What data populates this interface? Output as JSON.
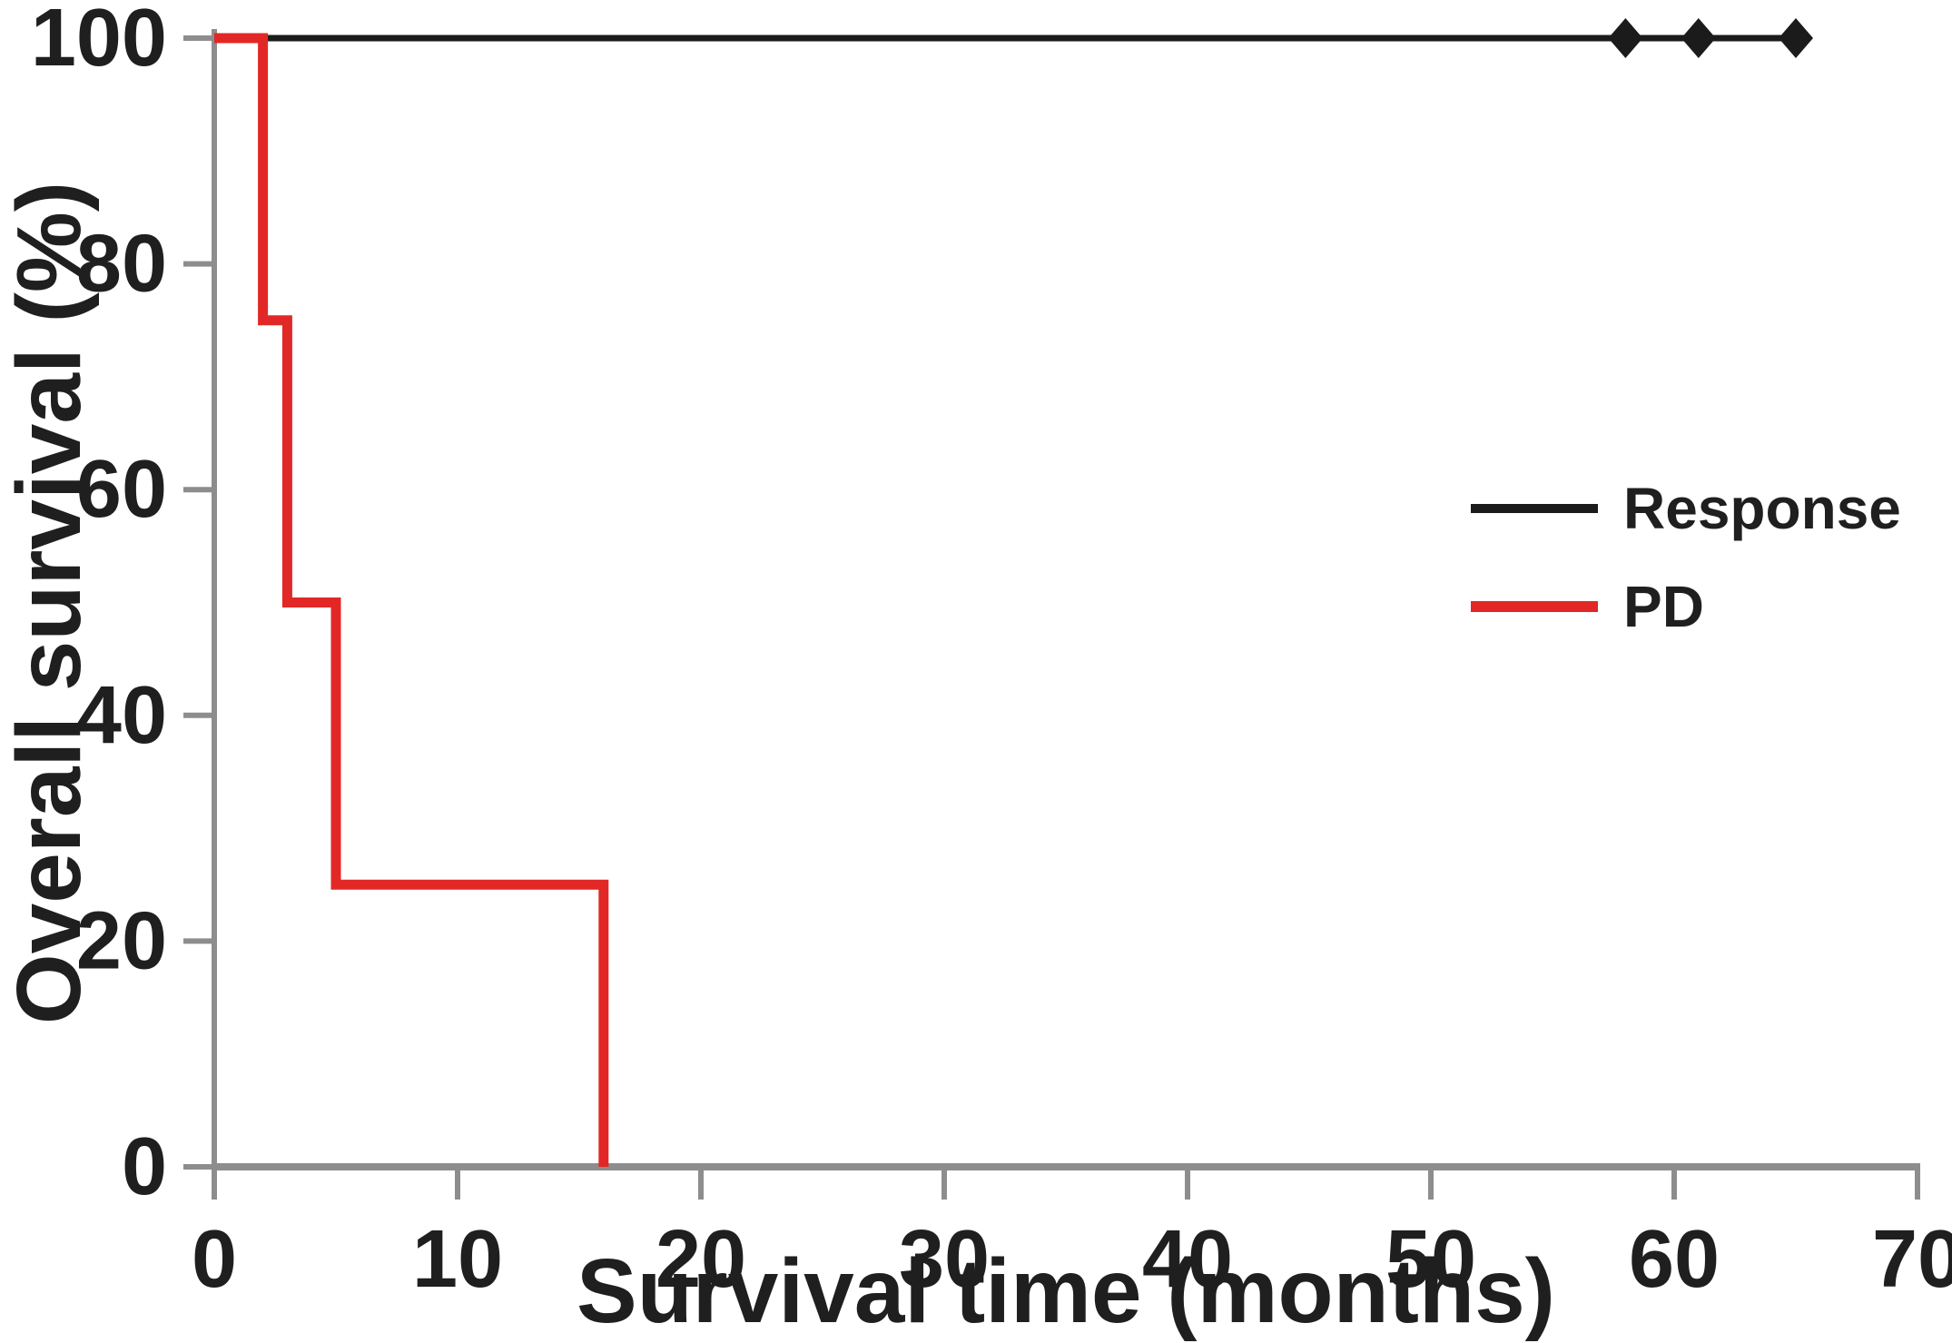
{
  "chart_data": {
    "type": "line",
    "subtype": "kaplan_meier_step_survival",
    "title": "",
    "xlabel": "Survival time (months)",
    "ylabel": "Overall survival (%)",
    "xlim": [
      0,
      70
    ],
    "ylim": [
      0,
      100
    ],
    "x_ticks": [
      0,
      10,
      20,
      30,
      40,
      50,
      60,
      70
    ],
    "y_ticks": [
      0,
      20,
      40,
      60,
      80,
      100
    ],
    "grid": false,
    "legend_position": "center-right",
    "axis_color": "#8d8d8d",
    "text_color": "#1f1f1f",
    "background_color": "#ffffff",
    "series": [
      {
        "name": "Response",
        "color": "#1b1b1b",
        "line_width": 7,
        "points": [
          [
            0,
            100
          ],
          [
            65.5,
            100
          ]
        ],
        "censor_times": [
          58,
          61,
          65
        ],
        "censor_value": 100,
        "censor_symbol": "diamond"
      },
      {
        "name": "PD",
        "color": "#e12826",
        "line_width": 11,
        "points": [
          [
            0,
            100
          ],
          [
            2,
            100
          ],
          [
            2,
            75
          ],
          [
            3,
            75
          ],
          [
            3,
            50
          ],
          [
            5,
            50
          ],
          [
            5,
            25
          ],
          [
            16,
            25
          ],
          [
            16,
            0
          ]
        ],
        "censor_times": [],
        "censor_value": null,
        "censor_symbol": null
      }
    ]
  }
}
